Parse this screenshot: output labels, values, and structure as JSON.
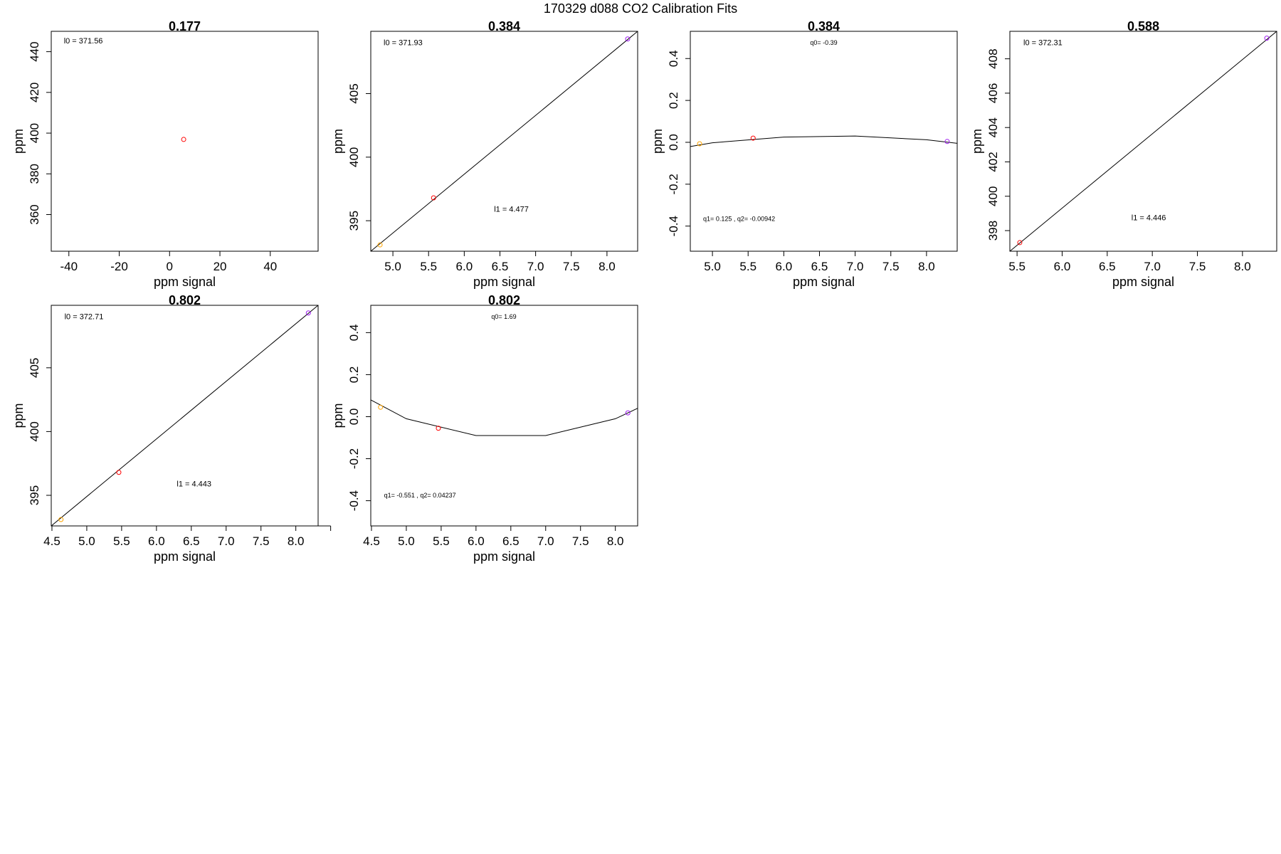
{
  "suptitle": "170329   d088   CO2 Calibration Fits",
  "chart_data": [
    {
      "type": "scatter",
      "title": "0.177",
      "xlabel": "ppm signal",
      "ylabel": "ppm",
      "xlim": [
        -47,
        59
      ],
      "ylim": [
        342,
        450
      ],
      "xticks": [
        -40,
        -20,
        0,
        20,
        40
      ],
      "yticks": [
        360,
        380,
        400,
        420,
        440
      ],
      "points": [
        {
          "x": 5.6,
          "y": 396.9,
          "color": "#ff0000"
        }
      ],
      "fit_line": [],
      "annotations": [
        {
          "text": "l0 =  371.56",
          "x": -42,
          "y": 444,
          "anchor": "start",
          "size": "ann"
        }
      ]
    },
    {
      "type": "scatter",
      "title": "0.384",
      "xlabel": "ppm signal",
      "ylabel": "ppm",
      "xlim": [
        4.69,
        8.43
      ],
      "ylim": [
        392.6,
        409.9
      ],
      "xticks": [
        5.0,
        5.5,
        6.0,
        6.5,
        7.0,
        7.5,
        8.0
      ],
      "yticks": [
        395,
        400,
        405
      ],
      "points": [
        {
          "x": 4.82,
          "y": 393.1,
          "color": "#ffa500"
        },
        {
          "x": 5.57,
          "y": 396.8,
          "color": "#ff0000"
        },
        {
          "x": 8.29,
          "y": 409.3,
          "color": "#a020f0"
        }
      ],
      "fit_line": [
        [
          4.69,
          392.6
        ],
        [
          8.43,
          409.9
        ]
      ],
      "annotations": [
        {
          "text": "l0 =  371.93",
          "x": 4.87,
          "y": 408.8,
          "anchor": "start",
          "size": "ann"
        },
        {
          "text": "l1 =  4.477",
          "x": 6.66,
          "y": 395.7,
          "anchor": "middle",
          "size": "ann"
        }
      ]
    },
    {
      "type": "line",
      "title": "0.384",
      "xlabel": "ppm signal",
      "ylabel": "ppm",
      "xlim": [
        4.69,
        8.43
      ],
      "ylim": [
        -0.52,
        0.53
      ],
      "xticks": [
        5.0,
        5.5,
        6.0,
        6.5,
        7.0,
        7.5,
        8.0
      ],
      "yticks": [
        -0.4,
        -0.2,
        0.0,
        0.2,
        0.4
      ],
      "points": [
        {
          "x": 4.82,
          "y": -0.007,
          "color": "#ffa500"
        },
        {
          "x": 5.57,
          "y": 0.02,
          "color": "#ff0000"
        },
        {
          "x": 8.29,
          "y": 0.004,
          "color": "#a020f0"
        }
      ],
      "fit_line": [
        [
          4.69,
          -0.02
        ],
        [
          5.0,
          -0.002
        ],
        [
          6.0,
          0.025
        ],
        [
          7.0,
          0.03
        ],
        [
          8.0,
          0.012
        ],
        [
          8.43,
          -0.005
        ]
      ],
      "annotations": [
        {
          "text": "q0= -0.39",
          "x": 6.56,
          "y": 0.465,
          "anchor": "middle",
          "size": "ann-small"
        },
        {
          "text": "q1= 0.125 , q2= -0.00942",
          "x": 4.87,
          "y": -0.375,
          "anchor": "start",
          "size": "ann-small"
        }
      ]
    },
    {
      "type": "scatter",
      "title": "0.588",
      "xlabel": "ppm signal",
      "ylabel": "ppm",
      "xlim": [
        5.42,
        8.38
      ],
      "ylim": [
        396.8,
        409.6
      ],
      "xticks": [
        5.5,
        6.0,
        6.5,
        7.0,
        7.5,
        8.0
      ],
      "yticks": [
        398,
        400,
        402,
        404,
        406,
        408
      ],
      "points": [
        {
          "x": 5.53,
          "y": 397.3,
          "color": "#ff0000"
        },
        {
          "x": 8.27,
          "y": 409.2,
          "color": "#a020f0"
        }
      ],
      "fit_line": [
        [
          5.42,
          396.8
        ],
        [
          8.38,
          409.6
        ]
      ],
      "annotations": [
        {
          "text": "l0 =  372.31",
          "x": 5.57,
          "y": 408.8,
          "anchor": "start",
          "size": "ann"
        },
        {
          "text": "l1 =  4.446",
          "x": 6.96,
          "y": 398.6,
          "anchor": "middle",
          "size": "ann"
        }
      ]
    },
    {
      "type": "scatter",
      "title": "0.802",
      "xlabel": "ppm signal",
      "ylabel": "ppm",
      "xlim": [
        4.49,
        8.32
      ],
      "ylim": [
        392.6,
        409.9
      ],
      "xticks": [
        4.5,
        5.0,
        5.5,
        6.0,
        6.5,
        7.0,
        7.5,
        8.0,
        8.5
      ],
      "xtick_labels": [
        "4.5",
        "5.0",
        "5.5",
        "6.0",
        "6.5",
        "7.0",
        "7.5",
        "8.0",
        ""
      ],
      "yticks": [
        395,
        400,
        405
      ],
      "points": [
        {
          "x": 4.63,
          "y": 393.1,
          "color": "#ffa500"
        },
        {
          "x": 5.46,
          "y": 396.8,
          "color": "#ff0000"
        },
        {
          "x": 8.18,
          "y": 409.3,
          "color": "#a020f0"
        }
      ],
      "fit_line": [
        [
          4.49,
          392.6
        ],
        [
          8.32,
          409.9
        ]
      ],
      "annotations": [
        {
          "text": "l0 =  372.71",
          "x": 4.68,
          "y": 408.8,
          "anchor": "start",
          "size": "ann"
        },
        {
          "text": "l1 =  4.443",
          "x": 6.54,
          "y": 395.7,
          "anchor": "middle",
          "size": "ann"
        }
      ]
    },
    {
      "type": "line",
      "title": "0.802",
      "xlabel": "ppm signal",
      "ylabel": "ppm",
      "xlim": [
        4.49,
        8.32
      ],
      "ylim": [
        -0.52,
        0.53
      ],
      "xticks": [
        4.5,
        5.0,
        5.5,
        6.0,
        6.5,
        7.0,
        7.5,
        8.0
      ],
      "yticks": [
        -0.4,
        -0.2,
        0.0,
        0.2,
        0.4
      ],
      "points": [
        {
          "x": 4.63,
          "y": 0.045,
          "color": "#ffa500"
        },
        {
          "x": 5.46,
          "y": -0.055,
          "color": "#ff0000"
        },
        {
          "x": 8.18,
          "y": 0.018,
          "color": "#a020f0"
        }
      ],
      "fit_line": [
        [
          4.49,
          0.08
        ],
        [
          5.0,
          -0.01
        ],
        [
          6.0,
          -0.09
        ],
        [
          7.0,
          -0.09
        ],
        [
          8.0,
          -0.01
        ],
        [
          8.32,
          0.04
        ]
      ],
      "annotations": [
        {
          "text": "q0= 1.69",
          "x": 6.4,
          "y": 0.465,
          "anchor": "middle",
          "size": "ann-small"
        },
        {
          "text": "q1= -0.551 , q2= 0.04237",
          "x": 4.68,
          "y": -0.385,
          "anchor": "start",
          "size": "ann-small"
        }
      ]
    }
  ]
}
